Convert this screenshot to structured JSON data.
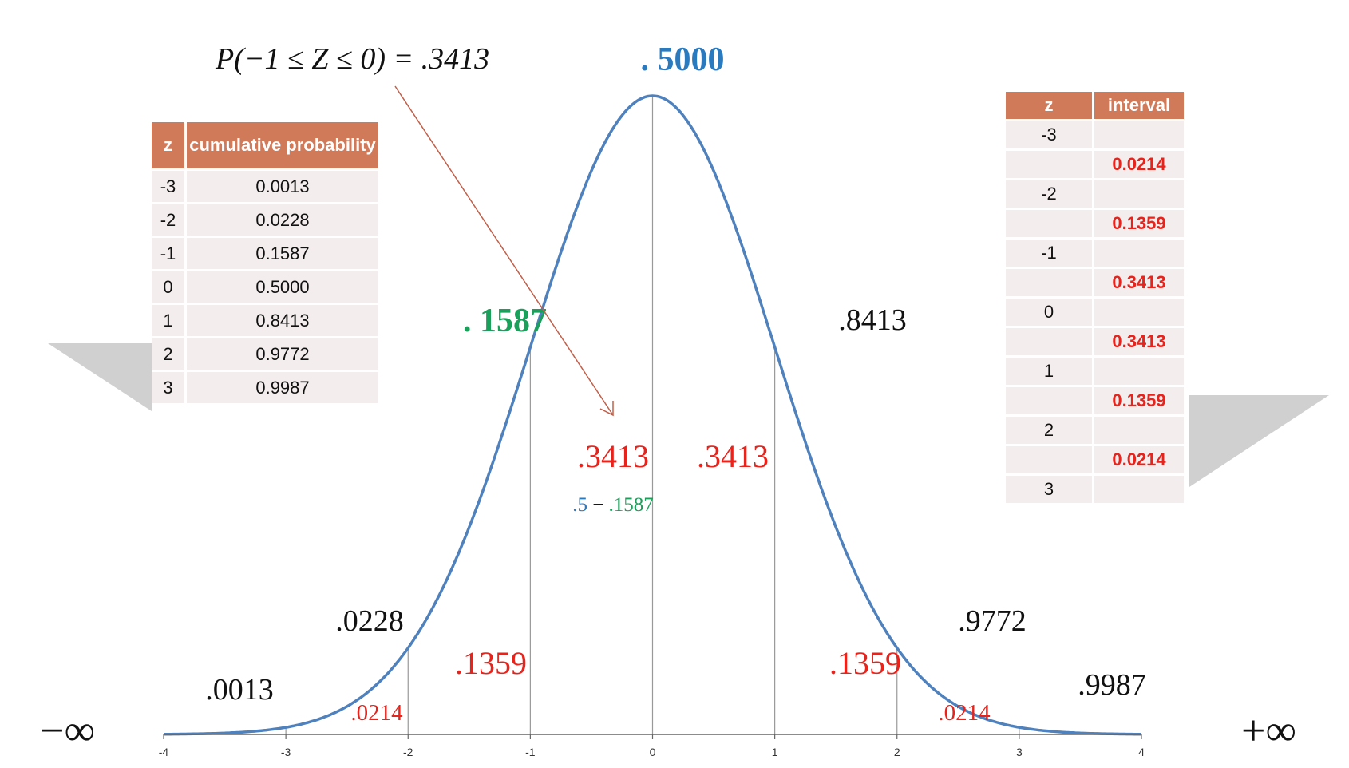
{
  "chart_data": {
    "type": "area",
    "title": "",
    "xlabel": "",
    "ylabel": "",
    "xlim": [
      -4,
      4
    ],
    "x_ticks": [
      "-4",
      "-3",
      "-2",
      "-1",
      "0",
      "1",
      "2",
      "3",
      "4"
    ],
    "z_lines": [
      -3,
      -2,
      -1,
      0,
      1,
      2,
      3
    ],
    "left_infinity": "−∞",
    "right_infinity": "+∞",
    "formula": "P(−1 ≤ Z ≤ 0) = .3413",
    "cumulative_labels": [
      {
        "z": -3,
        "text": ".0013",
        "color": "#111111"
      },
      {
        "z": -2,
        "text": ".0228",
        "color": "#111111"
      },
      {
        "z": -1,
        "text": ". 1587",
        "color": "#1aa05a"
      },
      {
        "z": 0,
        "text": ". 5000",
        "color": "#2a7ac0"
      },
      {
        "z": 1,
        "text": ".8413",
        "color": "#111111"
      },
      {
        "z": 2,
        "text": ".9772",
        "color": "#111111"
      },
      {
        "z": 3,
        "text": ".9987",
        "color": "#111111"
      }
    ],
    "interval_labels": [
      {
        "from": -3,
        "to": -2,
        "text": ".0214",
        "size": "small"
      },
      {
        "from": -2,
        "to": -1,
        "text": ".1359",
        "size": "large"
      },
      {
        "from": -1,
        "to": 0,
        "text": ".3413",
        "size": "large"
      },
      {
        "from": 0,
        "to": 1,
        "text": ".3413",
        "size": "large"
      },
      {
        "from": 1,
        "to": 2,
        "text": ".1359",
        "size": "large"
      },
      {
        "from": 2,
        "to": 3,
        "text": ".0214",
        "size": "small"
      }
    ],
    "subtraction_note": {
      "left": ".5",
      "operator": " − ",
      "right": ".1587"
    },
    "colors": {
      "curve": "#4f81bd",
      "interval": "#e8231c",
      "arrow": "#c0604a",
      "grid": "#999999"
    }
  },
  "left_table": {
    "headers": [
      "z",
      "cumulative probability"
    ],
    "rows": [
      [
        "-3",
        "0.0013"
      ],
      [
        "-2",
        "0.0228"
      ],
      [
        "-1",
        "0.1587"
      ],
      [
        "0",
        "0.5000"
      ],
      [
        "1",
        "0.8413"
      ],
      [
        "2",
        "0.9772"
      ],
      [
        "3",
        "0.9987"
      ]
    ]
  },
  "right_table": {
    "headers": [
      "z",
      "interval"
    ],
    "rows": [
      [
        "-3",
        ""
      ],
      [
        "",
        "0.0214"
      ],
      [
        "-2",
        ""
      ],
      [
        "",
        "0.1359"
      ],
      [
        "-1",
        ""
      ],
      [
        "",
        "0.3413"
      ],
      [
        "0",
        ""
      ],
      [
        "",
        "0.3413"
      ],
      [
        "1",
        ""
      ],
      [
        "",
        "0.1359"
      ],
      [
        "2",
        ""
      ],
      [
        "",
        "0.0214"
      ],
      [
        "3",
        ""
      ]
    ]
  }
}
